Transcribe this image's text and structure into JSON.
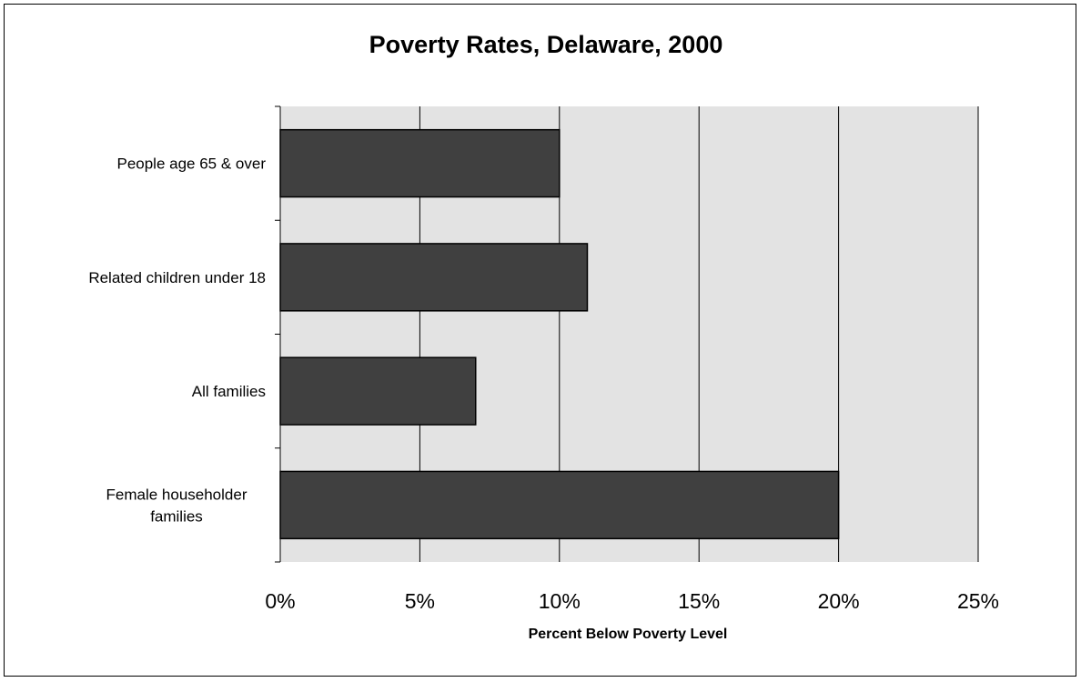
{
  "chart_data": {
    "type": "bar",
    "orientation": "horizontal",
    "title": "Poverty Rates, Delaware, 2000",
    "xlabel": "Percent Below Poverty Level",
    "ylabel": "",
    "categories": [
      "People age 65 & over",
      "Related children under 18",
      "All families",
      "Female householder families"
    ],
    "values": [
      10,
      11,
      7,
      20
    ],
    "xlim": [
      0,
      25
    ],
    "x_ticks": [
      0,
      5,
      10,
      15,
      20,
      25
    ],
    "x_tick_labels": [
      "0%",
      "5%",
      "10%",
      "15%",
      "20%",
      "25%"
    ],
    "grid": "vertical major gridlines",
    "legend": "none",
    "colors": {
      "bar_fill": "#404040",
      "bar_stroke": "#000000",
      "plot_background": "#e3e3e3",
      "gridline": "#000000"
    }
  }
}
